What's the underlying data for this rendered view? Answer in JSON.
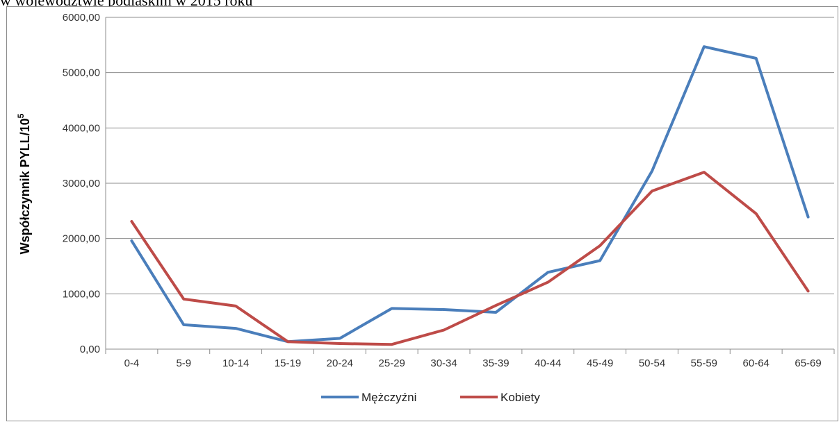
{
  "caption": "w województwie podlaskim w 2015 roku",
  "chart_data": {
    "type": "line",
    "categories": [
      "0-4",
      "5-9",
      "10-14",
      "15-19",
      "20-24",
      "25-29",
      "30-34",
      "35-39",
      "40-44",
      "45-49",
      "50-54",
      "55-59",
      "60-64",
      "65-69"
    ],
    "ylabel": "Współczynnik PYLL/10",
    "ylabel_sup": "5",
    "ylim": [
      0,
      6000
    ],
    "yticks": [
      "0,00",
      "1000,00",
      "2000,00",
      "3000,00",
      "4000,00",
      "5000,00",
      "6000,00"
    ],
    "grid": true,
    "legend_position": "bottom",
    "series": [
      {
        "name": "Mężczyźni",
        "color": "#4a7ebb",
        "values": [
          1960,
          440,
          375,
          135,
          195,
          735,
          715,
          665,
          1390,
          1600,
          3220,
          5470,
          5260,
          2390
        ]
      },
      {
        "name": "Kobiety",
        "color": "#be4b48",
        "values": [
          2310,
          905,
          780,
          135,
          100,
          85,
          345,
          790,
          1210,
          1870,
          2860,
          3200,
          2450,
          1050
        ]
      }
    ]
  }
}
